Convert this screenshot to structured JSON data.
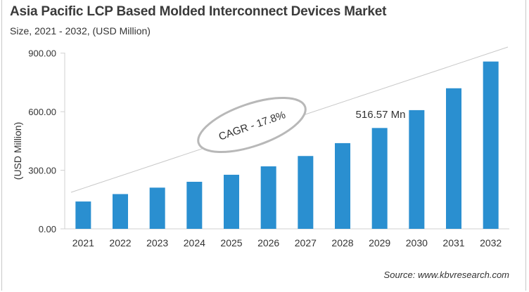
{
  "chart_data": {
    "type": "bar",
    "title": "Asia Pacific LCP Based Molded Interconnect Devices Market",
    "subtitle": "Size, 2021 - 2032, (USD Million)",
    "xlabel": "",
    "ylabel": "(USD Million)",
    "ylim": [
      0,
      900
    ],
    "yticks": [
      "0.00",
      "300.00",
      "600.00",
      "900.00"
    ],
    "categories": [
      "2021",
      "2022",
      "2023",
      "2024",
      "2025",
      "2026",
      "2027",
      "2028",
      "2029",
      "2030",
      "2031",
      "2032"
    ],
    "values": [
      140,
      178,
      211,
      241,
      277,
      320,
      373,
      439,
      516.57,
      608,
      720,
      857
    ],
    "bar_color": "#2a8fd0",
    "grid": false,
    "annotations": {
      "cagr": "CAGR - 17.8%",
      "data_label": "516.57 Mn"
    },
    "source": "Source: www.kbvresearch.com"
  }
}
